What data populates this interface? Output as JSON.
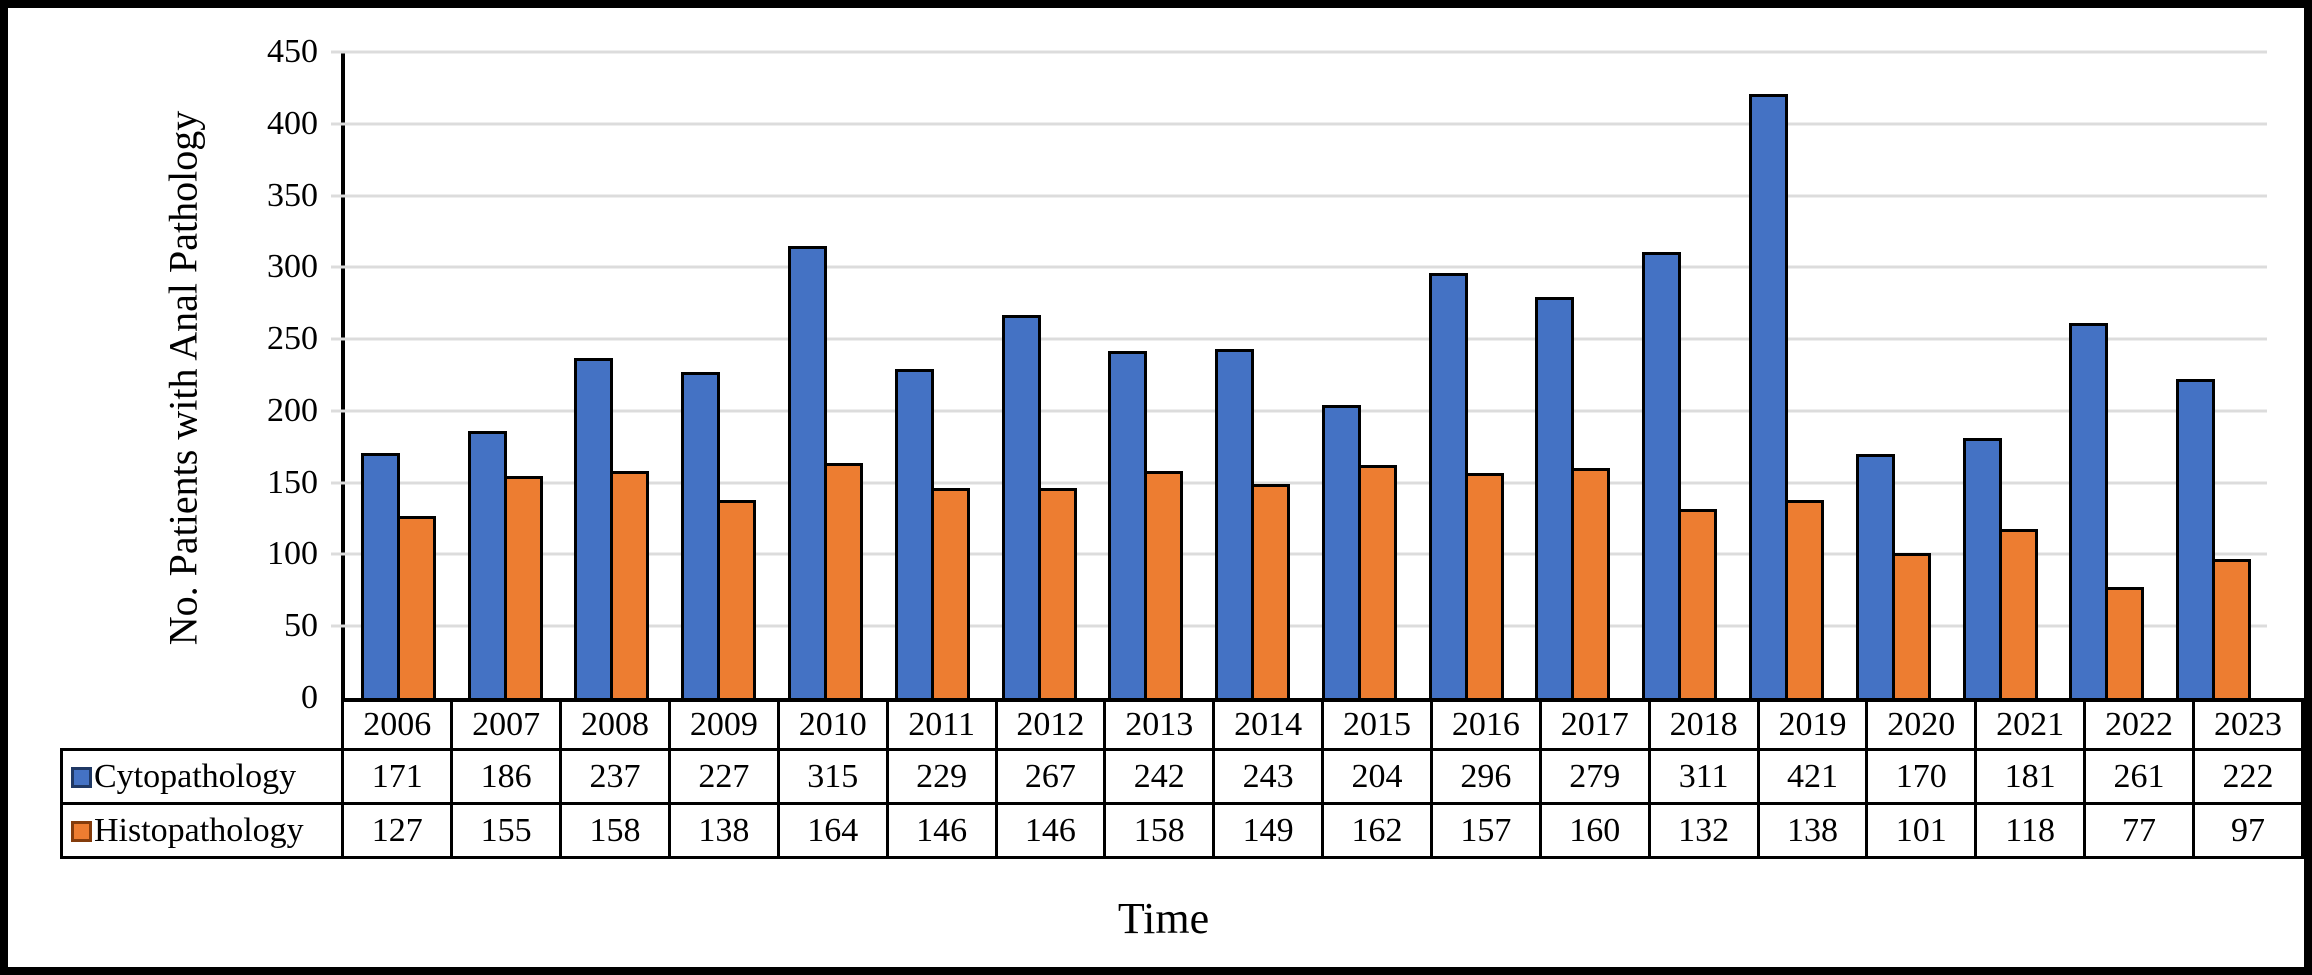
{
  "figure": {
    "background_color": "#FFFFFF",
    "frame_border_color": "#000000"
  },
  "chart_data": {
    "type": "bar",
    "title": "",
    "xlabel": "Time",
    "ylabel": "No. Patients with Anal Pathology",
    "ylim": [
      0,
      450
    ],
    "ytick_step": 50,
    "yticks": [
      450,
      400,
      350,
      300,
      250,
      200,
      150,
      100,
      50,
      0
    ],
    "grid": "horizontal",
    "gridline_color": "#DCDCDC",
    "bar_outline_color": "#000000",
    "legend_position": "data-table-left-column",
    "data_table_shown": true,
    "categories": [
      "2006",
      "2007",
      "2008",
      "2009",
      "2010",
      "2011",
      "2012",
      "2013",
      "2014",
      "2015",
      "2016",
      "2017",
      "2018",
      "2019",
      "2020",
      "2021",
      "2022",
      "2023"
    ],
    "series": [
      {
        "name": "Cytopathology",
        "color": "#4472C4",
        "swatch_border_color": "#1F3864",
        "values": [
          171,
          186,
          237,
          227,
          315,
          229,
          267,
          242,
          243,
          204,
          296,
          279,
          311,
          421,
          170,
          181,
          261,
          222
        ]
      },
      {
        "name": "Histopathology",
        "color": "#ED7D31",
        "swatch_border_color": "#843C0C",
        "values": [
          127,
          155,
          158,
          138,
          164,
          146,
          146,
          158,
          149,
          162,
          157,
          160,
          132,
          138,
          101,
          118,
          77,
          97
        ]
      }
    ]
  }
}
